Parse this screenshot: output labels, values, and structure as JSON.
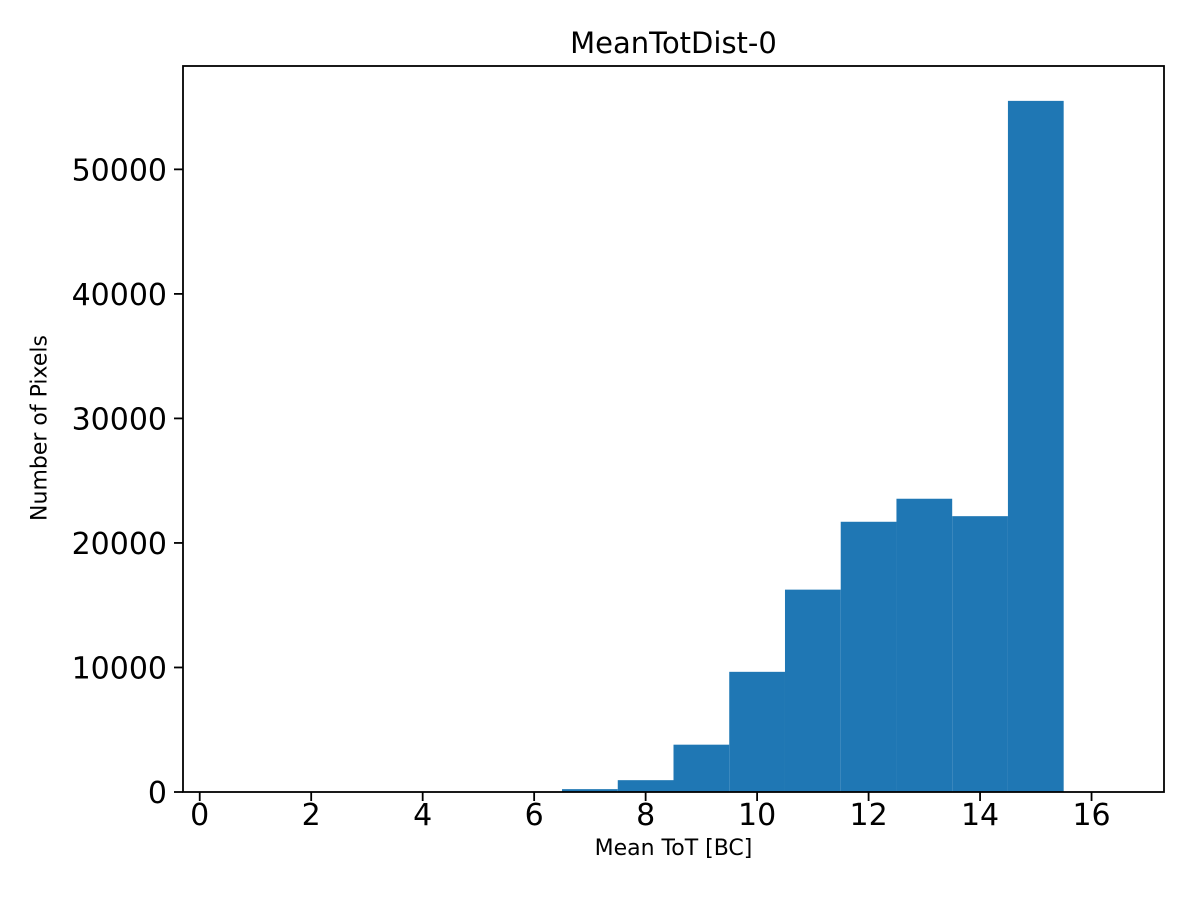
{
  "figure": {
    "background_color": "#ffffff",
    "axes_color": "#000000"
  },
  "chart_data": {
    "type": "bar",
    "subtype": "histogram",
    "title": "MeanTotDist-0",
    "xlabel": "Mean ToT [BC]",
    "ylabel": "Number of Pixels",
    "bar_color": "#1f77b4",
    "bin_width": 1,
    "bin_centers": [
      1,
      2,
      3,
      4,
      5,
      6,
      7,
      8,
      9,
      10,
      11,
      12,
      13,
      14,
      15,
      16
    ],
    "counts": [
      0,
      0,
      0,
      0,
      0,
      0,
      230,
      950,
      3800,
      9650,
      16250,
      21700,
      23550,
      22150,
      55500,
      0
    ],
    "xticks": [
      0,
      2,
      4,
      6,
      8,
      10,
      12,
      14,
      16
    ],
    "yticks": [
      0,
      10000,
      20000,
      30000,
      40000,
      50000
    ],
    "xlim": [
      -0.3,
      17.3
    ],
    "ylim": [
      0,
      58300
    ],
    "grid": false,
    "legend": false
  }
}
